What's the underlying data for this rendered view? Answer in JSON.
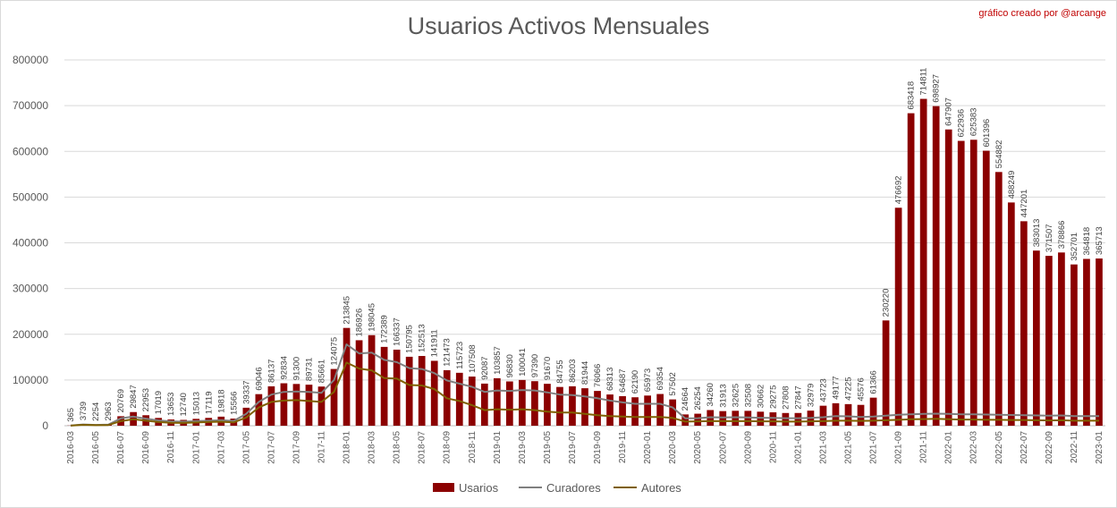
{
  "title": "Usuarios Activos Mensuales",
  "credit": "gráfico creado por @arcange",
  "colors": {
    "usuarios": "#8b0000",
    "curadores": "#7f7f7f",
    "autores": "#7f6000",
    "grid": "#d9d9d9",
    "text": "#595959"
  },
  "chart_data": {
    "type": "bar",
    "title": "Usuarios Activos Mensuales",
    "ylim": [
      0,
      800000
    ],
    "yticks": [
      "0",
      "100000",
      "200000",
      "300000",
      "400000",
      "500000",
      "600000",
      "700000",
      "800000"
    ],
    "grid": true,
    "legend_position": "bottom",
    "categories": [
      "2016-03",
      "2016-04",
      "2016-05",
      "2016-06",
      "2016-07",
      "2016-08",
      "2016-09",
      "2016-10",
      "2016-11",
      "2016-12",
      "2017-01",
      "2017-02",
      "2017-03",
      "2017-04",
      "2017-05",
      "2017-06",
      "2017-07",
      "2017-08",
      "2017-09",
      "2017-10",
      "2017-11",
      "2017-12",
      "2018-01",
      "2018-02",
      "2018-03",
      "2018-04",
      "2018-05",
      "2018-06",
      "2018-07",
      "2018-08",
      "2018-09",
      "2018-10",
      "2018-11",
      "2018-12",
      "2019-01",
      "2019-02",
      "2019-03",
      "2019-04",
      "2019-05",
      "2019-06",
      "2019-07",
      "2019-08",
      "2019-09",
      "2019-10",
      "2019-11",
      "2019-12",
      "2020-01",
      "2020-02",
      "2020-03",
      "2020-04",
      "2020-05",
      "2020-06",
      "2020-07",
      "2020-08",
      "2020-09",
      "2020-10",
      "2020-11",
      "2020-12",
      "2021-01",
      "2021-02",
      "2021-03",
      "2021-04",
      "2021-05",
      "2021-06",
      "2021-07",
      "2021-08",
      "2021-09",
      "2021-10",
      "2021-11",
      "2021-12",
      "2022-01",
      "2022-02",
      "2022-03",
      "2022-04",
      "2022-05",
      "2022-06",
      "2022-07",
      "2022-08",
      "2022-09",
      "2022-10",
      "2022-11",
      "2022-12",
      "2023-01"
    ],
    "xtick_labels": [
      "2016-03",
      "2016-05",
      "2016-07",
      "2016-09",
      "2016-11",
      "2017-01",
      "2017-03",
      "2017-05",
      "2017-07",
      "2017-09",
      "2017-11",
      "2018-01",
      "2018-03",
      "2018-05",
      "2018-07",
      "2018-09",
      "2018-11",
      "2019-01",
      "2019-03",
      "2019-05",
      "2019-07",
      "2019-09",
      "2019-11",
      "2020-01",
      "2020-03",
      "2020-05",
      "2020-07",
      "2020-09",
      "2020-11",
      "2021-01",
      "2021-03",
      "2021-05",
      "2021-07",
      "2021-09",
      "2021-11",
      "2022-01",
      "2022-03",
      "2022-05",
      "2022-07",
      "2022-09",
      "2022-11",
      "2023-01"
    ],
    "series": [
      {
        "name": "Usarios",
        "type": "bar",
        "values": [
          365,
          3739,
          2254,
          2963,
          20769,
          29847,
          22953,
          17019,
          13653,
          12740,
          15013,
          17119,
          19818,
          15566,
          39337,
          69046,
          86137,
          92834,
          91300,
          89731,
          85661,
          124075,
          213845,
          186926,
          198045,
          172389,
          166337,
          150795,
          152513,
          141911,
          121473,
          115723,
          107508,
          92087,
          103857,
          96830,
          100041,
          97390,
          91670,
          84755,
          86203,
          81944,
          76066,
          68313,
          64687,
          62190,
          65973,
          69354,
          57502,
          24664,
          26254,
          34260,
          31913,
          32625,
          32508,
          30662,
          29275,
          27808,
          27847,
          32979,
          43723,
          49177,
          47225,
          45576,
          61366,
          230220,
          476692,
          683418,
          714811,
          698927,
          647907,
          622936,
          625383,
          601396,
          554882,
          488249,
          447201,
          383013,
          371507,
          378866,
          352701,
          364818,
          365713
        ]
      },
      {
        "name": "Curadores",
        "type": "line",
        "values": [
          300,
          2800,
          1800,
          2300,
          16000,
          20000,
          15500,
          11500,
          9500,
          8800,
          10000,
          11000,
          12000,
          10500,
          26000,
          52000,
          68000,
          74000,
          75000,
          74000,
          72000,
          100000,
          178000,
          158000,
          160000,
          144000,
          139000,
          126000,
          124000,
          115000,
          99000,
          92000,
          85000,
          74000,
          77000,
          76000,
          78000,
          77000,
          73000,
          68000,
          67000,
          64000,
          60000,
          55000,
          51000,
          48000,
          48000,
          48000,
          40000,
          16000,
          16500,
          18500,
          18000,
          18500,
          18000,
          17500,
          17000,
          16500,
          16500,
          17000,
          18500,
          21000,
          20500,
          19000,
          20000,
          22000,
          24000,
          25000,
          26000,
          26500,
          26000,
          25000,
          25000,
          24500,
          24000,
          23500,
          23000,
          22500,
          22000,
          22500,
          21000,
          21000,
          21000
        ]
      },
      {
        "name": "Autores",
        "type": "line",
        "values": [
          200,
          2000,
          1200,
          1600,
          10000,
          14000,
          11000,
          8000,
          6500,
          6000,
          7000,
          8000,
          8800,
          7200,
          18000,
          40000,
          52000,
          55000,
          56000,
          54000,
          52000,
          74000,
          138000,
          125000,
          121000,
          104000,
          103000,
          89000,
          88000,
          80000,
          60000,
          54000,
          45000,
          34000,
          36000,
          35000,
          36000,
          34000,
          31000,
          29000,
          29000,
          26000,
          23000,
          21000,
          20000,
          19000,
          19000,
          19000,
          17000,
          9000,
          9500,
          10000,
          10000,
          10000,
          10000,
          9500,
          9500,
          9000,
          9000,
          9500,
          10000,
          11000,
          11000,
          10500,
          11000,
          12000,
          13000,
          14000,
          14500,
          15000,
          14000,
          13500,
          13500,
          13000,
          13000,
          12500,
          12500,
          12000,
          11500,
          12000,
          11000,
          11000,
          11000
        ]
      }
    ]
  }
}
